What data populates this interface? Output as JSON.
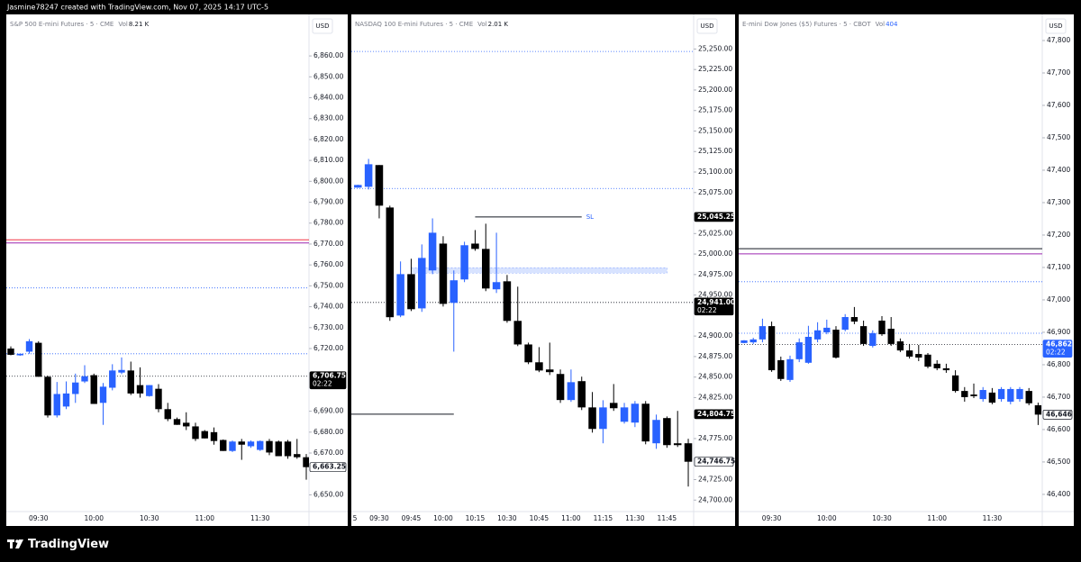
{
  "header": {
    "text": "Jasmine78247 created with TradingView.com, Nov 07, 2025 14:17 UTC-5"
  },
  "footer": {
    "logo_text": "TradingView"
  },
  "chart_data": [
    {
      "type": "candlestick",
      "title": "S&P 500 E-mini Futures · 5 · CME",
      "volume_label": "Vol",
      "volume": "8.21 K",
      "volume_color": "#131722",
      "currency": "USD",
      "up_color": "#2962ff",
      "down_color": "#000000",
      "ylim": [
        6642,
        6879
      ],
      "yticks": [
        {
          "value": 6860,
          "label": "6,860.00"
        },
        {
          "value": 6850,
          "label": "6,850.00"
        },
        {
          "value": 6840,
          "label": "6,840.00"
        },
        {
          "value": 6830,
          "label": "6,830.00"
        },
        {
          "value": 6820,
          "label": "6,820.00"
        },
        {
          "value": 6810,
          "label": "6,810.00"
        },
        {
          "value": 6800,
          "label": "6,800.00"
        },
        {
          "value": 6790,
          "label": "6,790.00"
        },
        {
          "value": 6780,
          "label": "6,780.00"
        },
        {
          "value": 6770,
          "label": "6,770.00"
        },
        {
          "value": 6760,
          "label": "6,760.00"
        },
        {
          "value": 6750,
          "label": "6,750.00"
        },
        {
          "value": 6740,
          "label": "6,740.00"
        },
        {
          "value": 6730,
          "label": "6,730.00"
        },
        {
          "value": 6720,
          "label": "6,720.00"
        },
        {
          "value": 6690,
          "label": "6,690.00"
        },
        {
          "value": 6680,
          "label": "6,680.00"
        },
        {
          "value": 6670,
          "label": "6,670.00"
        },
        {
          "value": 6650,
          "label": "6,650.00"
        }
      ],
      "categories": [
        null,
        null,
        null,
        "09:30",
        null,
        null,
        null,
        null,
        null,
        "10:00",
        null,
        null,
        null,
        null,
        null,
        "10:30",
        null,
        null,
        null,
        null,
        null,
        "11:00",
        null,
        null,
        null,
        null,
        null,
        "11:30",
        null,
        null,
        null,
        null,
        null
      ],
      "open": [
        6720,
        6716.75,
        6718.5,
        6722.75,
        6706.5,
        6688,
        6692.25,
        6698.25,
        6704.25,
        6707.25,
        6694,
        6701.25,
        6708.5,
        6709.5,
        6702.5,
        6697.25,
        6700.75,
        6691,
        6686.25,
        6684.5,
        6682.75,
        6680.5,
        6680,
        6676.25,
        6671,
        6675.5,
        6673.25,
        6671.5,
        6675.75,
        6675.5,
        6675.5,
        6669.5,
        6668
      ],
      "high": [
        6721,
        6717.5,
        6724.5,
        6723.5,
        6707,
        6704,
        6704.25,
        6708,
        6712,
        6708,
        6703.5,
        6712.5,
        6715.75,
        6713.75,
        6711,
        6702.5,
        6703,
        6694,
        6687,
        6689.5,
        6684.5,
        6681,
        6682.25,
        6676.5,
        6676,
        6676.75,
        6676,
        6676,
        6676.75,
        6676,
        6676.25,
        6676.75,
        6669.5
      ],
      "low": [
        6716.75,
        6716.5,
        6717.5,
        6706.5,
        6687,
        6687,
        6691,
        6694,
        6703.5,
        6693.5,
        6683.5,
        6700,
        6707.75,
        6697.75,
        6696.5,
        6697,
        6689.5,
        6685.25,
        6683.5,
        6681,
        6675.75,
        6677,
        6674,
        6671,
        6670.5,
        6666.75,
        6672.5,
        6671,
        6669,
        6668.5,
        6667.25,
        6667.25,
        6657.25
      ],
      "close": [
        6717,
        6717.5,
        6723.5,
        6706.5,
        6688,
        6698.25,
        6698.5,
        6703.75,
        6706.75,
        6693.5,
        6701.75,
        6709.5,
        6709.75,
        6698.5,
        6698.5,
        6702.5,
        6691,
        6686.25,
        6683.5,
        6682.75,
        6676.75,
        6677,
        6675.75,
        6671,
        6675.5,
        6674,
        6675.5,
        6675.75,
        6670.25,
        6668.5,
        6668.5,
        6668,
        6663.25
      ],
      "levels": [
        {
          "value": 6772,
          "color": "#f23645",
          "style": "solid"
        },
        {
          "value": 6770.5,
          "color": "#9c27b0",
          "style": "solid"
        },
        {
          "value": 6749,
          "color": "#2962ff",
          "style": "dotted"
        },
        {
          "value": 6717.5,
          "color": "#2962ff",
          "style": "dotted"
        },
        {
          "value": 6706.75,
          "color": "#131722",
          "style": "dotted"
        }
      ],
      "price_labels": [
        {
          "value": 6706.75,
          "label": "6,706.75",
          "countdown": "02:22",
          "background": "#000000",
          "color": "#ffffff"
        },
        {
          "value": 6663.25,
          "label": "6,663.25",
          "background": "#ffffff",
          "color": "#131722"
        }
      ]
    },
    {
      "type": "candlestick",
      "title": "NASDAQ 100 E-mini Futures · 5 · CME",
      "volume_label": "Vol",
      "volume": "2.01 K",
      "volume_color": "#131722",
      "currency": "USD",
      "up_color": "#2962ff",
      "down_color": "#000000",
      "ylim": [
        24686,
        25290
      ],
      "x_axis_edge_label": "5",
      "yticks": [
        {
          "value": 25250,
          "label": "25,250.00"
        },
        {
          "value": 25225,
          "label": "25,225.00"
        },
        {
          "value": 25200,
          "label": "25,200.00"
        },
        {
          "value": 25175,
          "label": "25,175.00"
        },
        {
          "value": 25150,
          "label": "25,150.00"
        },
        {
          "value": 25125,
          "label": "25,125.00"
        },
        {
          "value": 25100,
          "label": "25,100.00"
        },
        {
          "value": 25075,
          "label": "25,075.00"
        },
        {
          "value": 25025,
          "label": "25,025.00"
        },
        {
          "value": 25000,
          "label": "25,000.00"
        },
        {
          "value": 24975,
          "label": "24,975.00"
        },
        {
          "value": 24950,
          "label": "24,950.00"
        },
        {
          "value": 24900,
          "label": "24,900.00"
        },
        {
          "value": 24875,
          "label": "24,875.00"
        },
        {
          "value": 24850,
          "label": "24,850.00"
        },
        {
          "value": 24825,
          "label": "24,825.00"
        },
        {
          "value": 24775,
          "label": "24,775.00"
        },
        {
          "value": 24725,
          "label": "24,725.00"
        },
        {
          "value": 24700,
          "label": "24,700.00"
        }
      ],
      "categories": [
        null,
        null,
        "09:30",
        null,
        null,
        "09:45",
        null,
        null,
        "10:00",
        null,
        null,
        "10:15",
        null,
        null,
        "10:30",
        null,
        null,
        "10:45",
        null,
        null,
        "11:00",
        null,
        null,
        "11:15",
        null,
        null,
        "11:30",
        null,
        null,
        "11:45",
        null,
        null
      ],
      "open": [
        25081,
        25082,
        25108.5,
        25056.75,
        24925,
        24975.5,
        24933.75,
        24980,
        25012.75,
        24940.5,
        24969,
        25012.75,
        25006.25,
        24957,
        24966.75,
        24918.5,
        24889.75,
        24868,
        24859.25,
        24853.75,
        24822,
        24845,
        24813,
        24786.75,
        24818.5,
        24795.5,
        24794.5,
        24817.5,
        24769.25,
        24800,
        24769.25,
        24769.25
      ],
      "high": [
        25084.5,
        25116,
        25108.5,
        25059,
        24991,
        24994.25,
        25011.75,
        25043.5,
        25021.75,
        24980,
        25015,
        25029.25,
        25037,
        25026,
        24974.5,
        24960.25,
        24892,
        24886.5,
        24892,
        24859.25,
        24859.25,
        24850.5,
        24831.75,
        24821.75,
        24841.5,
        24818.5,
        24820.75,
        24820.75,
        24804.25,
        24802,
        24808.75,
        24774.75
      ],
      "low": [
        25080.75,
        25078.75,
        25043.5,
        24918.5,
        24923,
        24930.5,
        24929.5,
        24975.5,
        24936,
        24881,
        24965.75,
        25004,
        24954.75,
        24952.5,
        24916.25,
        24887.75,
        24865.75,
        24856,
        24852.5,
        24818.5,
        24819.75,
        24809.75,
        24782.25,
        24769.25,
        24808.75,
        24793.25,
        24789,
        24768,
        24762.5,
        24763.75,
        24764.75,
        24716.5
      ],
      "close": [
        25084.25,
        25109.5,
        25059,
        24923,
        24975.5,
        24932.75,
        24995.25,
        25026,
        24939.25,
        24968,
        25010.75,
        25006.25,
        24958,
        24965.75,
        24918.5,
        24889.75,
        24868,
        24858,
        24856,
        24822,
        24843.75,
        24813,
        24786.75,
        24813,
        24812,
        24813,
        24817.5,
        24771.5,
        24797.75,
        24767,
        24767,
        24746.75
      ],
      "levels": [
        {
          "value": 25247,
          "color": "#2962ff",
          "style": "dotted"
        },
        {
          "value": 25080,
          "color": "#2962ff",
          "style": "dotted"
        },
        {
          "value": 24941,
          "color": "#131722",
          "style": "dotted"
        },
        {
          "value": 25045.25,
          "color": "#131722",
          "style": "solid",
          "from": 11,
          "to": 21,
          "text": "SL",
          "text_color": "#2962ff"
        },
        {
          "value": 24804.75,
          "color": "#131722",
          "style": "solid",
          "to": 9
        }
      ],
      "zones": [
        {
          "low": 24976.75,
          "high": 24983.25,
          "from": 5,
          "to": 29,
          "color": "#2962ff"
        }
      ],
      "price_labels": [
        {
          "value": 25045.25,
          "label": "25,045.25",
          "background": "#000000",
          "color": "#ffffff"
        },
        {
          "value": 24941,
          "label": "24,941.00",
          "countdown": "02:22",
          "background": "#000000",
          "color": "#ffffff"
        },
        {
          "value": 24804.75,
          "label": "24,804.75",
          "background": "#000000",
          "color": "#ffffff"
        },
        {
          "value": 24746.75,
          "label": "24,746.75",
          "background": "#ffffff",
          "color": "#131722"
        }
      ]
    },
    {
      "type": "candlestick",
      "title": "E-mini Dow Jones ($5) Futures · 5 · CBOT",
      "volume_label": "Vol",
      "volume": "404",
      "volume_color": "#2962ff",
      "currency": "USD",
      "up_color": "#2962ff",
      "down_color": "#000000",
      "ylim": [
        46347,
        47875
      ],
      "yticks": [
        {
          "value": 47800,
          "label": "47,800"
        },
        {
          "value": 47700,
          "label": "47,700"
        },
        {
          "value": 47600,
          "label": "47,600"
        },
        {
          "value": 47500,
          "label": "47,500"
        },
        {
          "value": 47400,
          "label": "47,400"
        },
        {
          "value": 47300,
          "label": "47,300"
        },
        {
          "value": 47200,
          "label": "47,200"
        },
        {
          "value": 47100,
          "label": "47,100"
        },
        {
          "value": 47000,
          "label": "47,000"
        },
        {
          "value": 46900,
          "label": "46,900"
        },
        {
          "value": 46800,
          "label": "46,800"
        },
        {
          "value": 46700,
          "label": "46,700"
        },
        {
          "value": 46600,
          "label": "46,600"
        },
        {
          "value": 46500,
          "label": "46,500"
        },
        {
          "value": 46400,
          "label": "46,400"
        }
      ],
      "categories": [
        null,
        null,
        null,
        "09:30",
        null,
        null,
        null,
        null,
        null,
        "10:00",
        null,
        null,
        null,
        null,
        null,
        "10:30",
        null,
        null,
        null,
        null,
        null,
        "11:00",
        null,
        null,
        null,
        null,
        null,
        "11:30",
        null,
        null,
        null,
        null,
        null
      ],
      "open": [
        46867,
        46869,
        46878,
        46919,
        46814,
        46753,
        46817,
        46806,
        46878,
        46900,
        46908,
        46908,
        46947,
        46919,
        46858,
        46936,
        46911,
        46872,
        46844,
        46833,
        46831,
        46803,
        46789,
        46767,
        46719,
        46708,
        46694,
        46714,
        46694,
        46686,
        46694,
        46719,
        46675
      ],
      "high": [
        46876,
        46883,
        46942,
        46933,
        46825,
        46828,
        46881,
        46920,
        46931,
        46939,
        46919,
        46956,
        46978,
        46936,
        46906,
        46950,
        46947,
        46881,
        46864,
        46861,
        46836,
        46814,
        46803,
        46783,
        46731,
        46742,
        46731,
        46728,
        46731,
        46731,
        46731,
        46728,
        46683
      ],
      "low": [
        46866,
        46864,
        46869,
        46778,
        46750,
        46747,
        46808,
        46803,
        46869,
        46894,
        46819,
        46903,
        46925,
        46858,
        46853,
        46889,
        46858,
        46839,
        46819,
        46811,
        46789,
        46783,
        46775,
        46714,
        46686,
        46697,
        46686,
        46678,
        46686,
        46678,
        46686,
        46675,
        46614
      ],
      "close": [
        46875,
        46878,
        46919,
        46783,
        46756,
        46817,
        46869,
        46886,
        46906,
        46914,
        46822,
        46947,
        46933,
        46864,
        46897,
        46894,
        46864,
        46844,
        46825,
        46822,
        46794,
        46789,
        46783,
        46719,
        46700,
        46703,
        46722,
        46683,
        46725,
        46725,
        46725,
        46681,
        46646
      ],
      "levels": [
        {
          "value": 47158,
          "color": "#131722",
          "style": "solid"
        },
        {
          "value": 47142,
          "color": "#9c27b0",
          "style": "solid"
        },
        {
          "value": 47056,
          "color": "#2962ff",
          "style": "dotted"
        },
        {
          "value": 46897,
          "color": "#2962ff",
          "style": "dotted"
        },
        {
          "value": 46862,
          "color": "#131722",
          "style": "dotted"
        }
      ],
      "price_labels": [
        {
          "value": 46862,
          "label": "46,862",
          "countdown": "02:22",
          "background": "#2962ff",
          "color": "#ffffff"
        },
        {
          "value": 46646,
          "label": "46,646",
          "background": "#ffffff",
          "color": "#131722"
        }
      ]
    }
  ]
}
